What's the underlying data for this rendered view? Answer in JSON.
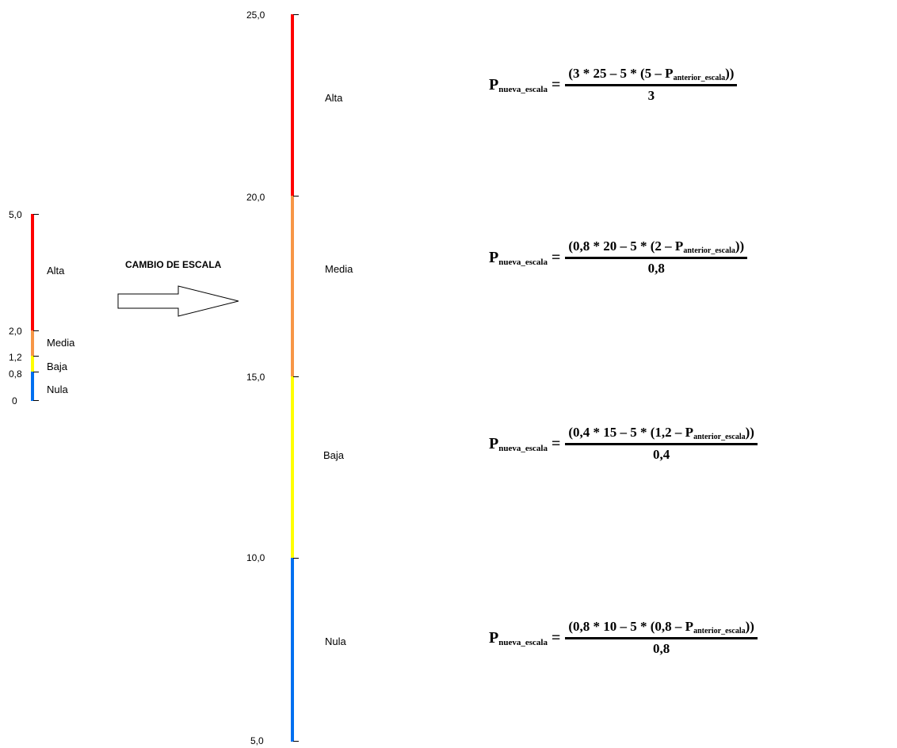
{
  "title": "CAMBIO DE ESCALA",
  "colors": {
    "alta": "#ff0000",
    "media": "#f79646",
    "baja": "#ffff00",
    "nula": "#0070f0"
  },
  "old_scale": {
    "ticks": [
      "5,0",
      "2,0",
      "1,2",
      "0,8",
      "0"
    ],
    "bands": [
      "Alta",
      "Media",
      "Baja",
      "Nula"
    ]
  },
  "new_scale": {
    "ticks": [
      "25,0",
      "20,0",
      "15,0",
      "10,0",
      "5,0"
    ],
    "bands": [
      "Alta",
      "Media",
      "Baja",
      "Nula"
    ]
  },
  "formulas": [
    {
      "lhs_main": "P",
      "lhs_sub": "nueva_escala",
      "equals": "=",
      "num_pre": "(3 * 25 – 5 * (5 – P",
      "num_sub": "anterior_escala",
      "num_post": "))",
      "den": "3"
    },
    {
      "lhs_main": "P",
      "lhs_sub": "nueva_escala",
      "equals": "=",
      "num_pre": "(0,8 * 20 – 5 * (2 – P",
      "num_sub": "anterior_escala",
      "num_post": "))",
      "den": "0,8"
    },
    {
      "lhs_main": "P",
      "lhs_sub": "nueva_escala",
      "equals": "=",
      "num_pre": "(0,4 * 15 – 5 * (1,2 – P",
      "num_sub": "anterior_escala",
      "num_post": "))",
      "den": "0,4"
    },
    {
      "lhs_main": "P",
      "lhs_sub": "nueva_escala",
      "equals": "=",
      "num_pre": "(0,8 * 10 – 5 * (0,8 – P",
      "num_sub": "anterior_escala",
      "num_post": "))",
      "den": "0,8"
    }
  ]
}
